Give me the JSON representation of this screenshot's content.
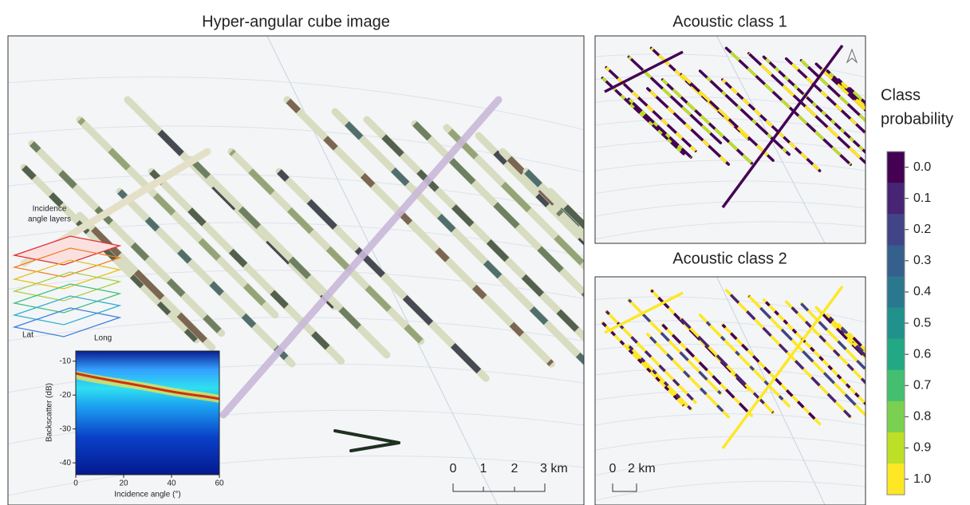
{
  "main": {
    "title": "Hyper-angular cube image",
    "scale_bar": [
      "0",
      "1",
      "2",
      "3 km"
    ],
    "cube_labels": {
      "title_line1": "Incidence",
      "title_line2": "angle layers",
      "lat": "Lat",
      "long": "Long"
    }
  },
  "inset_chart": {
    "type": "heatmap",
    "xlabel": "Incidence angle (°)",
    "ylabel": "Backscatter (dB)",
    "xlim": [
      0,
      60
    ],
    "ylim": [
      -43.5,
      -7
    ],
    "xticks": [
      0,
      20,
      40,
      60
    ],
    "yticks": [
      -10,
      -20,
      -30,
      -40
    ]
  },
  "class1": {
    "title": "Acoustic class 1"
  },
  "class2": {
    "title": "Acoustic class 2",
    "scale_bar": [
      "0",
      "2 km"
    ]
  },
  "colorbar": {
    "title_line1": "Class",
    "title_line2": "probability",
    "ticks": [
      {
        "value": 0,
        "label": "0.0"
      },
      {
        "value": 0.1,
        "label": "0.1"
      },
      {
        "value": 0.2,
        "label": "0.2"
      },
      {
        "value": 0.3,
        "label": "0.3"
      },
      {
        "value": 0.4,
        "label": "0.4"
      },
      {
        "value": 0.5,
        "label": "0.5"
      },
      {
        "value": 0.6,
        "label": "0.6"
      },
      {
        "value": 0.7,
        "label": "0.7"
      },
      {
        "value": 0.8,
        "label": "0.8"
      },
      {
        "value": 0.9,
        "label": "0.9"
      },
      {
        "value": 1,
        "label": "1.0"
      }
    ],
    "colors": [
      "#440154",
      "#482475",
      "#414487",
      "#355f8d",
      "#2a788e",
      "#21918c",
      "#22a884",
      "#44bf70",
      "#7ad151",
      "#bddf26",
      "#fde725"
    ]
  }
}
